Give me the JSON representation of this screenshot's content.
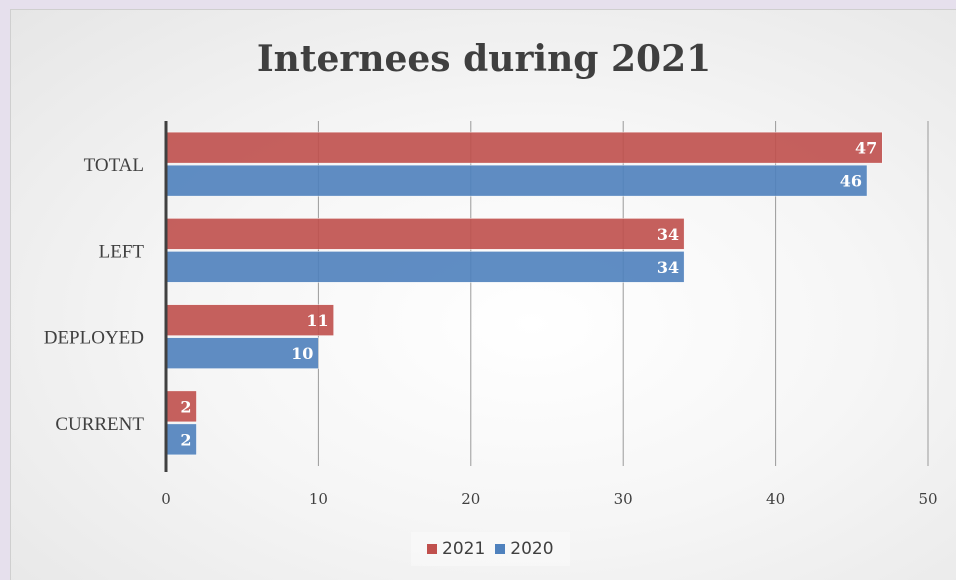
{
  "chart_data": {
    "type": "bar",
    "orientation": "horizontal",
    "title": "Internees during 2021",
    "categories": [
      "TOTAL",
      "LEFT",
      "DEPLOYED",
      "CURRENT"
    ],
    "series": [
      {
        "name": "2021",
        "values": [
          47,
          34,
          11,
          2
        ],
        "color": "#c0504d"
      },
      {
        "name": "2020",
        "values": [
          46,
          34,
          10,
          2
        ],
        "color": "#4f81bd"
      }
    ],
    "xlim": [
      0,
      50
    ],
    "xticks": [
      0,
      10,
      20,
      30,
      40,
      50
    ],
    "grid": "vertical",
    "legend_position": "bottom",
    "data_labels": true
  }
}
